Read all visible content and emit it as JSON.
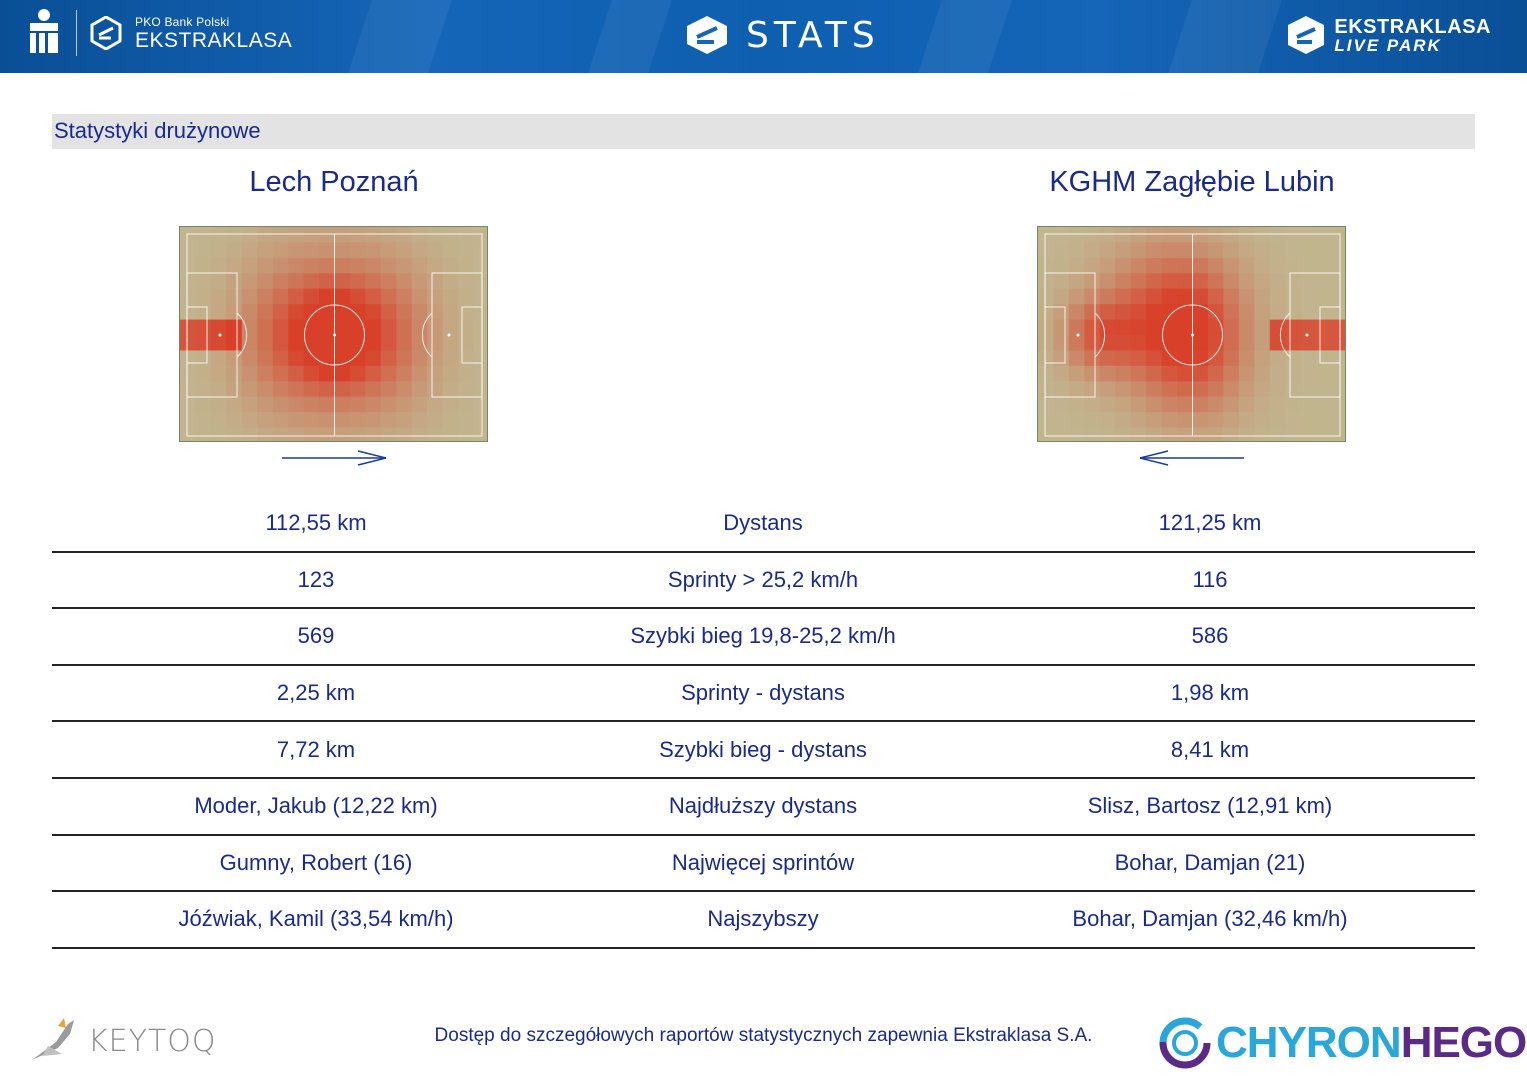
{
  "header": {
    "bank_small": "PKO Bank Polski",
    "bank_big": "EKSTRAKLASA",
    "center_title": "STATS",
    "right_line1": "EKSTRAKLASA",
    "right_line2": "LIVE PARK"
  },
  "section_title": "Statystyki drużynowe",
  "teams": {
    "left": "Lech Poznań",
    "right": "KGHM Zagłębie Lubin"
  },
  "stats": [
    {
      "left": "112,55 km",
      "label": "Dystans",
      "right": "121,25 km"
    },
    {
      "left": "123",
      "label": "Sprinty > 25,2 km/h",
      "right": "116"
    },
    {
      "left": "569",
      "label": "Szybki bieg 19,8-25,2 km/h",
      "right": "586"
    },
    {
      "left": "2,25 km",
      "label": "Sprinty - dystans",
      "right": "1,98 km"
    },
    {
      "left": "7,72 km",
      "label": "Szybki bieg - dystans",
      "right": "8,41 km"
    },
    {
      "left": "Moder, Jakub (12,22 km)",
      "label": "Najdłuższy dystans",
      "right": "Slisz, Bartosz (12,91 km)"
    },
    {
      "left": "Gumny, Robert (16)",
      "label": "Najwięcej sprintów",
      "right": "Bohar, Damjan (21)"
    },
    {
      "left": "Jóźwiak, Kamil (33,54 km/h)",
      "label": "Najszybszy",
      "right": "Bohar, Damjan (32,46 km/h)"
    }
  ],
  "footer": {
    "note": "Dostęp do szczegółowych raportów statystycznych zapewnia Ekstraklasa S.A.",
    "left_logo": "KEYTOQ",
    "right_logo_a": "CHYRON",
    "right_logo_b": "HEGO"
  },
  "colors": {
    "header_blue": "#1565b8",
    "text_navy": "#1a2a8c",
    "heat_hot": "#d9402a",
    "pitch_green": "#b9dcb0"
  }
}
